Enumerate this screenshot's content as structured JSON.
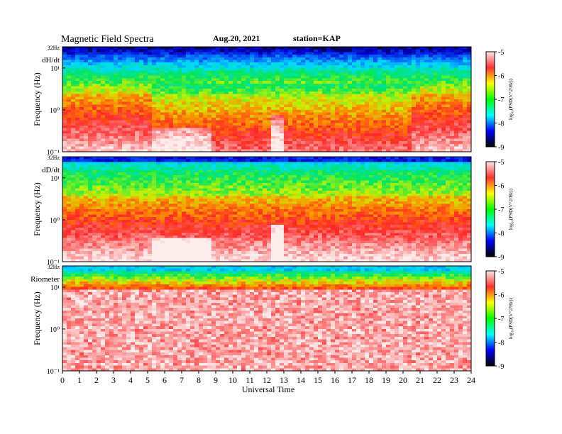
{
  "header": {
    "title": "Magnetic Field Spectra",
    "date": "Aug.20, 2021",
    "station": "station=KAP"
  },
  "colorbar": {
    "label": "log₁₀(PSD(V^2/Hz))",
    "ticks": [
      "-5",
      "-6",
      "-7",
      "-8",
      "-9"
    ],
    "stops": [
      "#fbe8e8",
      "#ff3030",
      "#ffff00",
      "#00ff00",
      "#00ffff",
      "#0000ff",
      "#000000"
    ]
  },
  "chart_data": [
    {
      "type": "heatmap",
      "panel_label": "dH/dt",
      "ylabel": "Frequency (Hz)",
      "ytick_labels": [
        "32Hz",
        "10¹",
        "10⁰",
        "10⁻¹"
      ],
      "y_scale": "log",
      "x_range": [
        0,
        24
      ],
      "variant": "dh"
    },
    {
      "type": "heatmap",
      "panel_label": "dD/dt",
      "ylabel": "Frequency (Hz)",
      "ytick_labels": [
        "32Hz",
        "10¹",
        "10⁰",
        "10⁻¹"
      ],
      "y_scale": "log",
      "x_range": [
        0,
        24
      ],
      "variant": "dd"
    },
    {
      "type": "heatmap",
      "panel_label": "Riometer",
      "ylabel": "Frequency (Hz)",
      "ytick_labels": [
        "32Hz",
        "10¹",
        "10⁰",
        "10⁻¹"
      ],
      "y_scale": "log",
      "x_range": [
        0,
        24
      ],
      "variant": "rio"
    }
  ],
  "x_axis": {
    "label": "Universal Time",
    "ticks": [
      "0",
      "1",
      "2",
      "3",
      "4",
      "5",
      "6",
      "7",
      "8",
      "9",
      "10",
      "11",
      "12",
      "13",
      "14",
      "15",
      "16",
      "17",
      "18",
      "19",
      "20",
      "21",
      "22",
      "23",
      "24"
    ]
  }
}
